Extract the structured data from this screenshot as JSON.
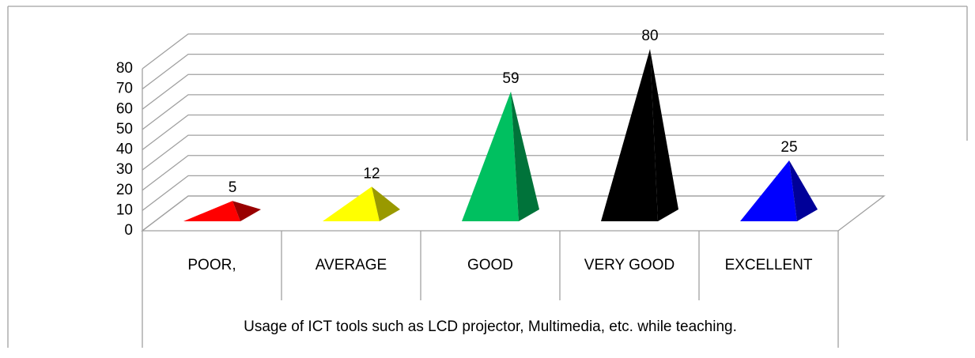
{
  "chart_data": {
    "type": "pyramid",
    "categories": [
      "POOR,",
      "AVERAGE",
      "GOOD",
      "VERY GOOD",
      "EXCELLENT"
    ],
    "values": [
      5,
      12,
      59,
      80,
      25
    ],
    "colors": [
      "#ff0000",
      "#ffff00",
      "#00c060",
      "#000000",
      "#0000ff"
    ],
    "x_label": "Usage of ICT tools such as LCD projector, Multimedia, etc. while teaching.",
    "ylim": [
      0,
      80
    ],
    "yticks": [
      0,
      10,
      20,
      30,
      40,
      50,
      60,
      70,
      80
    ],
    "grid": true
  }
}
